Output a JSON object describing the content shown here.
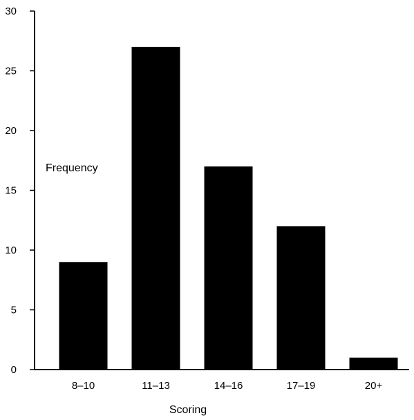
{
  "chart_data": {
    "type": "bar",
    "title": "",
    "xlabel": "Scoring",
    "ylabel": "Frequency",
    "categories": [
      "8–10",
      "11–13",
      "14–16",
      "17–19",
      "20+"
    ],
    "values": [
      9,
      27,
      17,
      12,
      1
    ],
    "ylim": [
      0,
      30
    ],
    "yticks": [
      0,
      5,
      10,
      15,
      20,
      25,
      30
    ],
    "grid": false,
    "legend": "none",
    "bar_color": "#000000"
  }
}
